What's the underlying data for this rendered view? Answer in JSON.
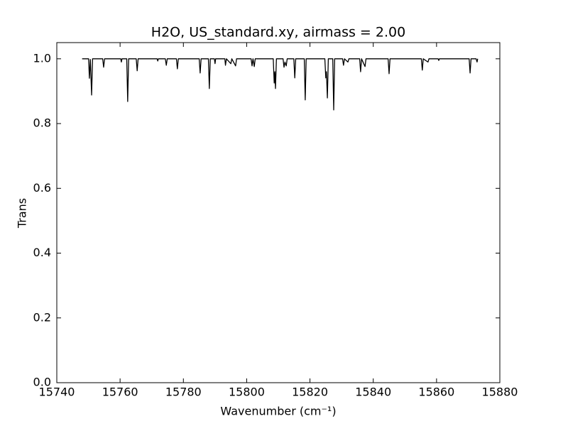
{
  "chart_data": {
    "type": "line",
    "title": "H2O, US_standard.xy, airmass = 2.00",
    "xlabel": "Wavenumber (cm⁻¹)",
    "ylabel": "Trans",
    "color": "#000000",
    "x": [
      15748,
      15750.05,
      15750.3,
      15750.6,
      15751.0,
      15751.3,
      15754.5,
      15754.8,
      15755.1,
      15760.2,
      15760.4,
      15760.6,
      15762.1,
      15762.4,
      15762.7,
      15765.1,
      15765.4,
      15765.7,
      15771.7,
      15771.9,
      15772.1,
      15774.3,
      15774.6,
      15774.9,
      15777.8,
      15778.1,
      15778.4,
      15785.0,
      15785.3,
      15785.6,
      15787.9,
      15788.2,
      15788.5,
      15789.8,
      15790.0,
      15790.2,
      15793.1,
      15793.3,
      15793.6,
      15795.0,
      15795.3,
      15796.5,
      15796.8,
      15801.4,
      15801.7,
      15802.0,
      15802.4,
      15802.7,
      15808.4,
      15808.7,
      15808.9,
      15809.1,
      15809.4,
      15811.5,
      15811.8,
      15812.1,
      15812.5,
      15812.8,
      15814.9,
      15815.2,
      15815.5,
      15818.2,
      15818.5,
      15818.8,
      15824.7,
      15825.0,
      15825.2,
      15825.5,
      15825.8,
      15827.2,
      15827.5,
      15827.8,
      15830.3,
      15830.6,
      15830.9,
      15832.0,
      15832.3,
      15835.7,
      15836.0,
      15836.3,
      15837.4,
      15837.7,
      15844.7,
      15845.0,
      15845.3,
      15855.2,
      15855.5,
      15855.8,
      15857.3,
      15857.6,
      15860.5,
      15860.7,
      15860.9,
      15870.3,
      15870.6,
      15870.9,
      15872.5,
      15872.8,
      15873.0
    ],
    "values": [
      1.0,
      1.0,
      0.94,
      0.998,
      0.888,
      1.0,
      1.0,
      0.974,
      1.0,
      1.0,
      0.99,
      1.0,
      1.0,
      0.868,
      1.0,
      1.0,
      0.963,
      1.0,
      1.0,
      0.993,
      1.0,
      1.0,
      0.98,
      1.0,
      1.0,
      0.969,
      1.0,
      1.0,
      0.956,
      1.0,
      1.0,
      0.908,
      1.0,
      1.0,
      0.985,
      1.0,
      1.0,
      0.98,
      1.0,
      0.985,
      1.0,
      0.978,
      1.0,
      1.0,
      0.978,
      1.0,
      0.976,
      1.0,
      1.0,
      0.925,
      0.96,
      0.908,
      1.0,
      1.0,
      0.974,
      0.99,
      0.978,
      1.0,
      1.0,
      0.941,
      1.0,
      1.0,
      0.873,
      1.0,
      1.0,
      0.941,
      0.96,
      0.879,
      1.0,
      1.0,
      0.842,
      1.0,
      1.0,
      0.98,
      1.0,
      0.99,
      1.0,
      1.0,
      0.96,
      1.0,
      0.976,
      1.0,
      1.0,
      0.954,
      1.0,
      1.0,
      0.965,
      1.0,
      0.99,
      1.0,
      1.0,
      0.995,
      1.0,
      1.0,
      0.956,
      1.0,
      1.0,
      0.99,
      1.0
    ],
    "xlim": [
      15740,
      15880
    ],
    "xticks": [
      15740,
      15760,
      15780,
      15800,
      15820,
      15840,
      15860,
      15880
    ],
    "ylim": [
      0,
      1.05
    ],
    "yticks": [
      {
        "value": 0,
        "label": "0.0"
      },
      {
        "value": 0.2,
        "label": "0.2"
      },
      {
        "value": 0.4,
        "label": "0.4"
      },
      {
        "value": 0.6,
        "label": "0.6"
      },
      {
        "value": 0.8,
        "label": "0.8"
      },
      {
        "value": 1,
        "label": "1.0"
      }
    ],
    "grid": false
  }
}
